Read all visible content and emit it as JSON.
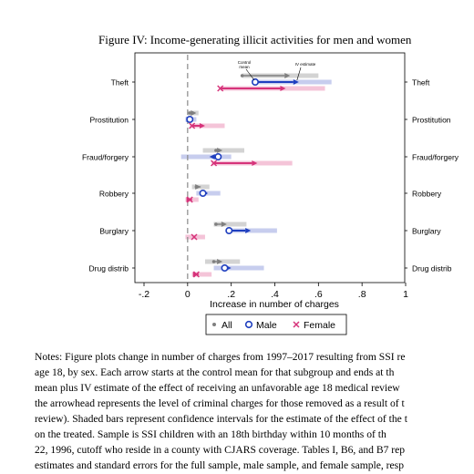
{
  "figure": {
    "title": "Figure IV: Income-generating illicit activities for men and women"
  },
  "chart_data": {
    "type": "arrow-interval",
    "xlabel": "Increase in number of charges",
    "xlim": [
      -0.2,
      1.0
    ],
    "xticks": [
      {
        "value": -0.2,
        "label": "-.2"
      },
      {
        "value": 0,
        "label": "0"
      },
      {
        "value": 0.2,
        "label": ".2"
      },
      {
        "value": 0.4,
        "label": ".4"
      },
      {
        "value": 0.6,
        "label": ".6"
      },
      {
        "value": 0.8,
        "label": ".8"
      },
      {
        "value": 1.0,
        "label": "1"
      }
    ],
    "reference_line": 0,
    "categories": [
      "Theft",
      "Prostitution",
      "Fraud/forgery",
      "Robbery",
      "Burglary",
      "Drug distrib"
    ],
    "legend": {
      "position": "bottom",
      "entries": [
        {
          "symbol": "•",
          "label": "All",
          "color": "#7f7f7f"
        },
        {
          "symbol": "O",
          "label": "Male",
          "color": "#1f3fbf"
        },
        {
          "symbol": "×",
          "label": "Female",
          "color": "#d6337a"
        }
      ]
    },
    "annotations": [
      {
        "text": "Control mean",
        "lines": [
          "Control",
          "mean"
        ]
      },
      {
        "text": "IV estimate"
      }
    ],
    "colors": {
      "all": "#7f7f7f",
      "all_ci": "#d3d3d3",
      "male": "#1f3fbf",
      "male_ci": "#c7cdee",
      "female": "#d6337a",
      "female_ci": "#f4c4d8"
    },
    "series": [
      {
        "name": "All",
        "key": "all",
        "start": [
          0.25,
          0.01,
          0.13,
          0.04,
          0.13,
          0.12
        ],
        "end": [
          0.47,
          0.04,
          0.16,
          0.06,
          0.18,
          0.16
        ],
        "ci_low": [
          0.25,
          0.0,
          0.07,
          0.02,
          0.12,
          0.08
        ],
        "ci_high": [
          0.6,
          0.05,
          0.26,
          0.1,
          0.27,
          0.24
        ]
      },
      {
        "name": "Male",
        "key": "male",
        "start": [
          0.31,
          0.01,
          0.14,
          0.07,
          0.19,
          0.17
        ],
        "end": [
          0.51,
          0.02,
          0.1,
          0.09,
          0.29,
          0.2
        ],
        "ci_low": [
          0.31,
          -0.01,
          -0.03,
          0.04,
          0.19,
          0.12
        ],
        "ci_high": [
          0.66,
          0.04,
          0.2,
          0.15,
          0.41,
          0.35
        ]
      },
      {
        "name": "Female",
        "key": "female",
        "start": [
          0.15,
          0.02,
          0.12,
          0.01,
          0.03,
          0.04
        ],
        "end": [
          0.45,
          0.08,
          0.32,
          0.02,
          0.03,
          0.05
        ],
        "ci_low": [
          0.15,
          0.01,
          0.11,
          -0.01,
          -0.01,
          0.02
        ],
        "ci_high": [
          0.63,
          0.17,
          0.48,
          0.05,
          0.08,
          0.11
        ]
      }
    ]
  },
  "notes": {
    "lines": [
      "Notes: Figure plots change in number of charges from 1997–2017 resulting from SSI re",
      "age 18, by sex. Each arrow starts at the control mean for that subgroup and ends at th",
      "mean plus IV estimate of the effect of receiving an unfavorable age 18 medical review",
      "the arrowhead represents the level of criminal charges for those removed as a result of t",
      "review). Shaded bars represent confidence intervals for the estimate of the effect of the t",
      "on the treated. Sample is SSI children with an 18th birthday within 10 months of th",
      "22, 1996, cutoff who reside in a county with CJARS coverage. Tables I, B6, and B7 rep",
      "estimates and standard errors for the full sample, male sample, and female sample, resp"
    ]
  }
}
